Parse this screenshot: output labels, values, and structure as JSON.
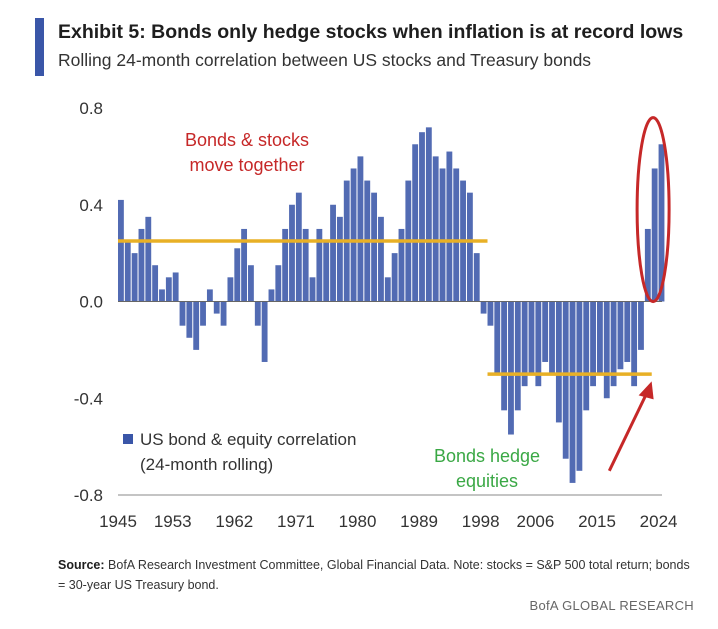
{
  "header": {
    "title": "Exhibit 5: Bonds only hedge stocks when inflation is at record lows",
    "subtitle": "Rolling 24-month correlation between US stocks and Treasury bonds"
  },
  "footer": {
    "source_label": "Source:",
    "source_text": "BofA Research Investment Committee, Global Financial Data. Note: stocks = S&P 500 total return; bonds = 30-year US Treasury bond.",
    "brand": "BofA GLOBAL RESEARCH"
  },
  "chart_data": {
    "type": "bar",
    "title": "",
    "xlabel": "",
    "ylabel": "",
    "xlim": [
      1945,
      2024.5
    ],
    "ylim": [
      -0.8,
      0.8
    ],
    "yticks": [
      0.8,
      0.4,
      0.0,
      -0.4,
      -0.8
    ],
    "ytick_labels": [
      "0.8",
      "0.4",
      "0.0",
      "-0.4",
      "-0.8"
    ],
    "xticks": [
      1945,
      1953,
      1962,
      1971,
      1980,
      1989,
      1998,
      2006,
      2015,
      2024
    ],
    "xtick_labels": [
      "1945",
      "1953",
      "1962",
      "1971",
      "1980",
      "1989",
      "1998",
      "2006",
      "2015",
      "2024"
    ],
    "grid": false,
    "legend_position": "bottom-left",
    "colors": {
      "series": "#3a56a8",
      "reference_lines": "#e8b026",
      "annotation_red": "#c62828",
      "annotation_green": "#3aa845"
    },
    "series": [
      {
        "name": "US bond & equity correlation (24-month rolling)",
        "x": [
          1945,
          1946,
          1947,
          1948,
          1949,
          1950,
          1951,
          1952,
          1953,
          1954,
          1955,
          1956,
          1957,
          1958,
          1959,
          1960,
          1961,
          1962,
          1963,
          1964,
          1965,
          1966,
          1967,
          1968,
          1969,
          1970,
          1971,
          1972,
          1973,
          1974,
          1975,
          1976,
          1977,
          1978,
          1979,
          1980,
          1981,
          1982,
          1983,
          1984,
          1985,
          1986,
          1987,
          1988,
          1989,
          1990,
          1991,
          1992,
          1993,
          1994,
          1995,
          1996,
          1997,
          1998,
          1999,
          2000,
          2001,
          2002,
          2003,
          2004,
          2005,
          2006,
          2007,
          2008,
          2009,
          2010,
          2011,
          2012,
          2013,
          2014,
          2015,
          2016,
          2017,
          2018,
          2019,
          2020,
          2021,
          2022,
          2023,
          2024
        ],
        "values": [
          0.42,
          0.25,
          0.2,
          0.3,
          0.35,
          0.15,
          0.05,
          0.1,
          0.12,
          -0.1,
          -0.15,
          -0.2,
          -0.1,
          0.05,
          -0.05,
          -0.1,
          0.1,
          0.22,
          0.3,
          0.15,
          -0.1,
          -0.25,
          0.05,
          0.15,
          0.3,
          0.4,
          0.45,
          0.3,
          0.1,
          0.3,
          0.25,
          0.4,
          0.35,
          0.5,
          0.55,
          0.6,
          0.5,
          0.45,
          0.35,
          0.1,
          0.2,
          0.3,
          0.5,
          0.65,
          0.7,
          0.72,
          0.6,
          0.55,
          0.62,
          0.55,
          0.5,
          0.45,
          0.2,
          -0.05,
          -0.1,
          -0.3,
          -0.45,
          -0.55,
          -0.45,
          -0.35,
          -0.3,
          -0.35,
          -0.25,
          -0.3,
          -0.5,
          -0.65,
          -0.75,
          -0.7,
          -0.45,
          -0.35,
          -0.3,
          -0.4,
          -0.35,
          -0.28,
          -0.25,
          -0.35,
          -0.2,
          0.3,
          0.55,
          0.65
        ]
      }
    ],
    "reference_lines": [
      {
        "x_start": 1945,
        "x_end": 1999,
        "y": 0.25
      },
      {
        "x_start": 1999,
        "x_end": 2023,
        "y": -0.3
      }
    ],
    "annotations": {
      "top": [
        "Bonds & stocks",
        "move together"
      ],
      "bottom": [
        "Bonds hedge",
        "equities"
      ],
      "legend_line1": "US bond & equity correlation",
      "legend_line2": "(24-month rolling)"
    }
  }
}
